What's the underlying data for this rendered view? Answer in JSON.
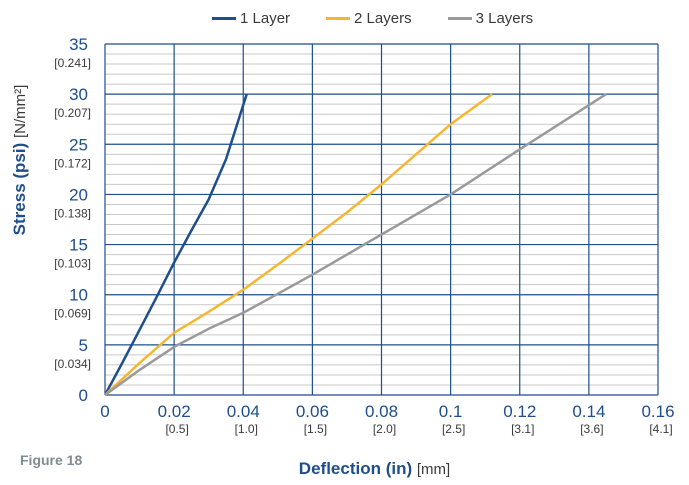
{
  "figure_caption": "Figure 18",
  "colors": {
    "grid_major": "#1f4e8c",
    "grid_minor": "#c8c8c8",
    "axis_text": "#1f4e8c",
    "secondary_text": "#3a3a3a"
  },
  "chart_data": {
    "type": "line",
    "xlabel": "Deflection (in)",
    "xlabel_unit": "[mm]",
    "ylabel": "Stress (psi)",
    "ylabel_unit": "[N/mm²]",
    "xlim": [
      0,
      0.16
    ],
    "ylim": [
      0,
      35
    ],
    "x_ticks": [
      "0",
      "0.02",
      "0.04",
      "0.06",
      "0.08",
      "0.1",
      "0.12",
      "0.14",
      "0.16"
    ],
    "x_ticks_secondary": [
      "",
      "[0.5]",
      "[1.0]",
      "[1.5]",
      "[2.0]",
      "[2.5]",
      "[3.1]",
      "[3.6]",
      "[4.1]"
    ],
    "y_ticks": [
      "0",
      "5",
      "10",
      "15",
      "20",
      "25",
      "30",
      "35"
    ],
    "y_ticks_secondary": [
      "",
      "[0.034]",
      "[0.069]",
      "[0.103]",
      "[0.138]",
      "[0.172]",
      "[0.207]",
      "[0.241]"
    ],
    "grid": true,
    "legend_position": "top",
    "series": [
      {
        "name": "1 Layer",
        "color": "#1f4e8c",
        "x": [
          0,
          0.005,
          0.01,
          0.015,
          0.02,
          0.025,
          0.03,
          0.035,
          0.041
        ],
        "y": [
          0,
          3.2,
          6.5,
          9.8,
          13.2,
          16.4,
          19.5,
          23.5,
          30
        ]
      },
      {
        "name": "2 Layers",
        "color": "#f5b731",
        "x": [
          0,
          0.01,
          0.02,
          0.03,
          0.04,
          0.05,
          0.06,
          0.07,
          0.08,
          0.09,
          0.1,
          0.112
        ],
        "y": [
          0,
          3.2,
          6.2,
          8.3,
          10.5,
          13.0,
          15.6,
          18.2,
          21.0,
          24.0,
          27.0,
          30
        ]
      },
      {
        "name": "3 Layers",
        "color": "#9a9a9a",
        "x": [
          0,
          0.01,
          0.02,
          0.03,
          0.04,
          0.06,
          0.08,
          0.1,
          0.12,
          0.145
        ],
        "y": [
          0,
          2.5,
          4.8,
          6.6,
          8.2,
          12.0,
          16.0,
          20.0,
          24.5,
          30
        ]
      }
    ]
  }
}
